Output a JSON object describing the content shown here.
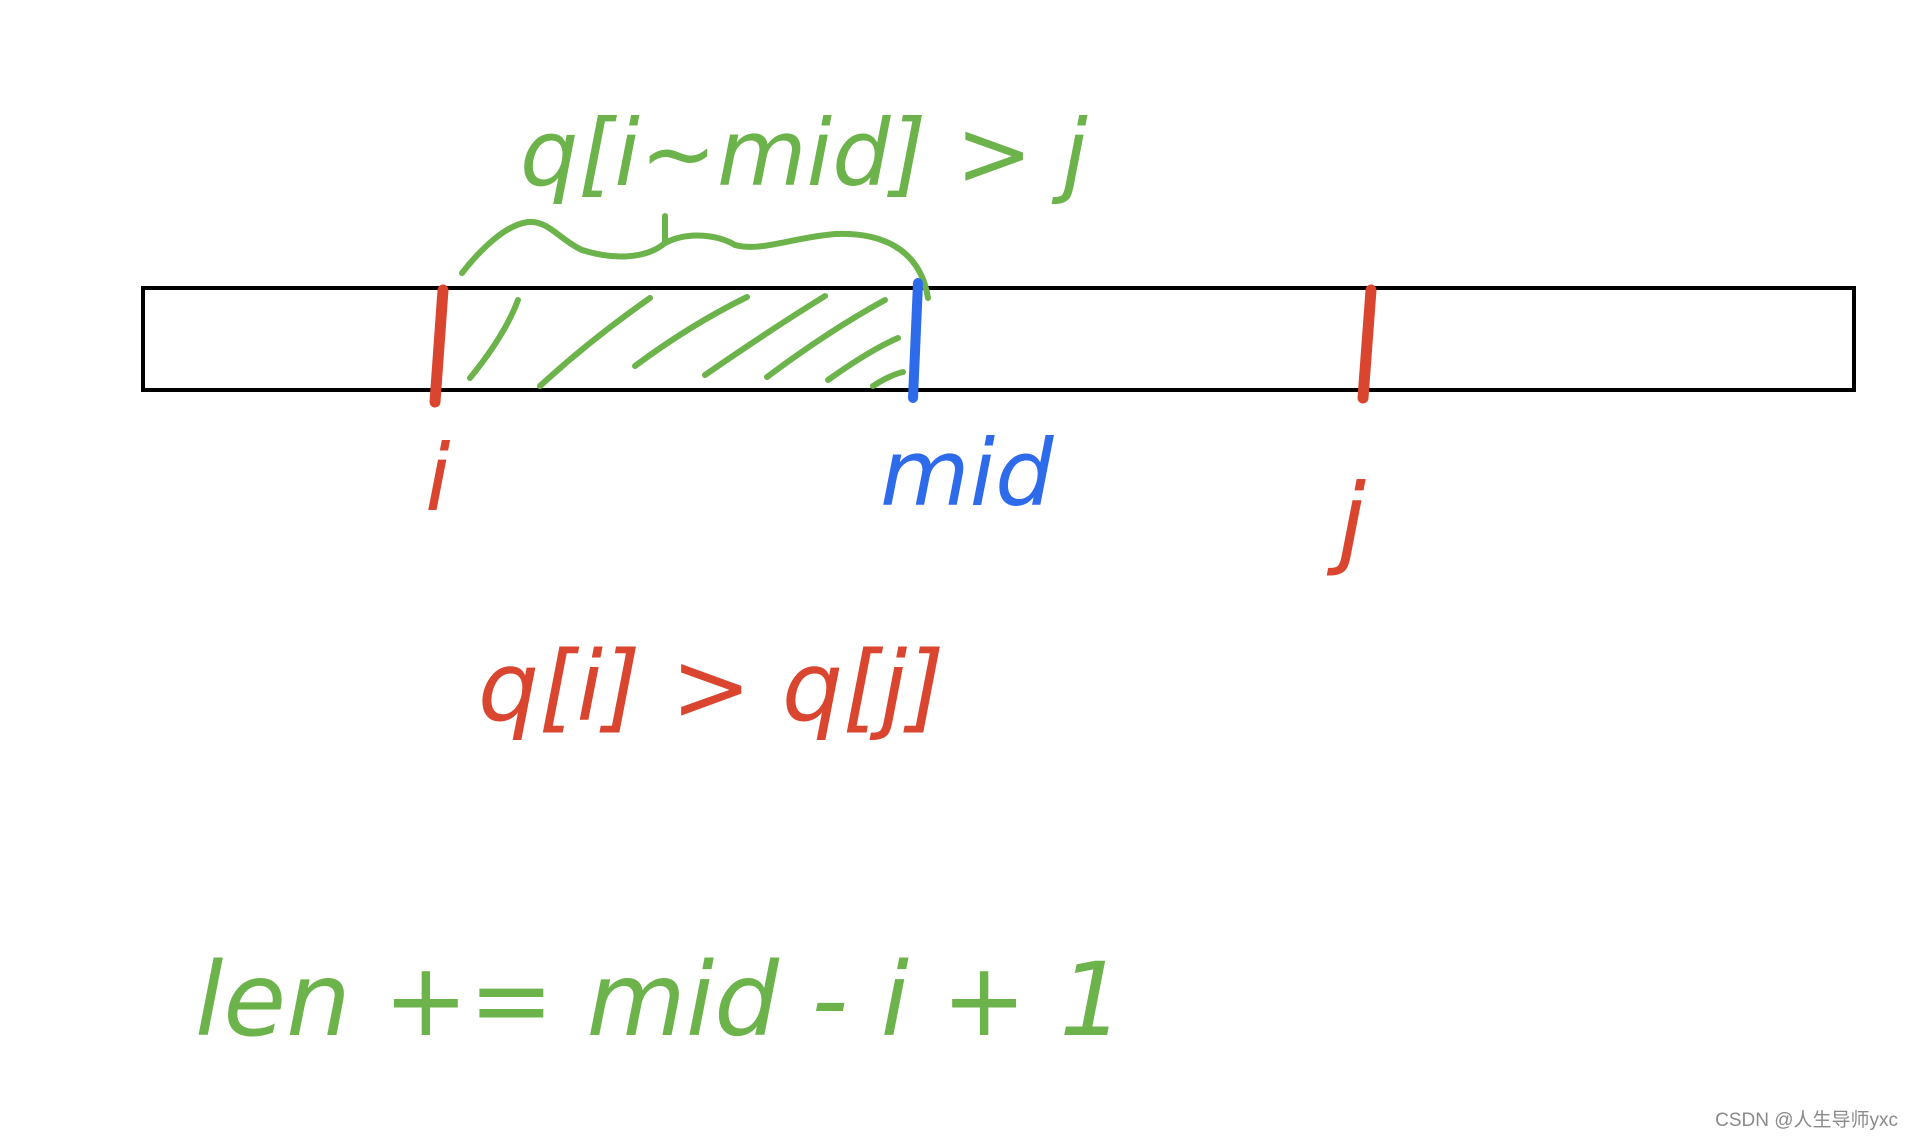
{
  "colors": {
    "green": "#6db34b",
    "red": "#d9452f",
    "blue": "#2e6bea",
    "black": "#000000",
    "watermark": "#8a8a8a"
  },
  "labels": {
    "top_condition": "q[i~mid] > j",
    "pointer_i": "i",
    "pointer_mid": "mid",
    "pointer_j": "j",
    "compare": "q[i] > q[j]",
    "formula": "len += mid - i + 1"
  },
  "watermark": "CSDN @人生导师yxc"
}
